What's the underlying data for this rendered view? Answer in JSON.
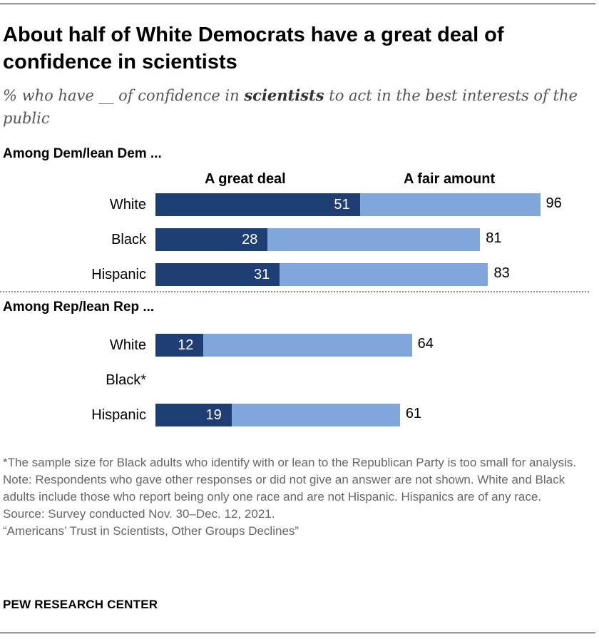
{
  "chart_data": {
    "type": "bar",
    "orientation": "horizontal",
    "stacked": true,
    "title": "About half of White Democrats have a great deal of confidence in scientists",
    "subtitle_parts": [
      "% who have __ of confidence in ",
      "scientists",
      " to act in the best interests of the public"
    ],
    "legend": [
      "A great deal",
      "A fair amount"
    ],
    "xlim": [
      0,
      100
    ],
    "colors": {
      "great_deal": "#1f3e73",
      "fair_amount": "#7fa7dc"
    },
    "groups": [
      {
        "label": "Among Dem/lean Dem ...",
        "rows": [
          {
            "category": "White",
            "great_deal": 51,
            "total": 96
          },
          {
            "category": "Black",
            "great_deal": 28,
            "total": 81
          },
          {
            "category": "Hispanic",
            "great_deal": 31,
            "total": 83
          }
        ]
      },
      {
        "label": "Among Rep/lean Rep ...",
        "rows": [
          {
            "category": "White",
            "great_deal": 12,
            "total": 64
          },
          {
            "category": "Black*",
            "great_deal": null,
            "total": null
          },
          {
            "category": "Hispanic",
            "great_deal": 19,
            "total": 61
          }
        ]
      }
    ]
  },
  "notes": [
    "*The sample size for Black adults who identify with or lean to the Republican Party is too small for analysis.",
    "Note: Respondents who gave other responses or did not give an answer are not shown. White and Black adults include those who report being only one race and are not Hispanic. Hispanics are of any race.",
    "Source: Survey conducted Nov. 30–Dec. 12, 2021.",
    "“Americans’ Trust in Scientists, Other Groups Declines”"
  ],
  "brand": "PEW RESEARCH CENTER"
}
